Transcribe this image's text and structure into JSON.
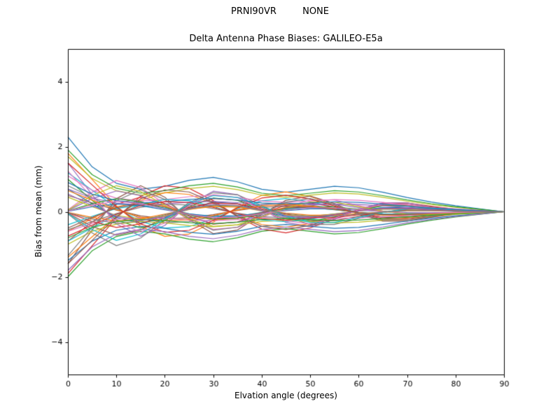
{
  "chart_data": {
    "type": "line",
    "suptitle": "PRNI90VR         NONE",
    "title": "Delta Antenna Phase Biases: GALILEO-E5a",
    "xlabel": "Elvation angle (degrees)",
    "ylabel": "Bias from mean (mm)",
    "xlim": [
      0,
      90
    ],
    "ylim": [
      -5,
      5
    ],
    "xticks": [
      0,
      10,
      20,
      30,
      40,
      50,
      60,
      70,
      80,
      90
    ],
    "yticks": [
      -4,
      -2,
      0,
      2,
      4
    ],
    "grid": false,
    "legend": "none",
    "line_width": 1.2,
    "x": [
      0,
      5,
      10,
      15,
      20,
      25,
      30,
      35,
      40,
      45,
      50,
      55,
      60,
      65,
      70,
      75,
      80,
      85,
      90
    ],
    "templates": [
      [
        1.0,
        0.6,
        0.38,
        0.3,
        0.34,
        0.42,
        0.46,
        0.4,
        0.3,
        0.26,
        0.3,
        0.34,
        0.32,
        0.26,
        0.19,
        0.13,
        0.08,
        0.04,
        0.0
      ],
      [
        1.0,
        0.55,
        0.1,
        -0.25,
        -0.42,
        -0.38,
        -0.18,
        0.08,
        0.28,
        0.34,
        0.26,
        0.12,
        -0.04,
        -0.14,
        -0.14,
        -0.09,
        -0.04,
        -0.01,
        0.0
      ],
      [
        1.0,
        0.35,
        -0.25,
        -0.5,
        -0.28,
        0.15,
        0.42,
        0.35,
        0.05,
        -0.22,
        -0.3,
        -0.16,
        0.05,
        0.18,
        0.18,
        0.1,
        0.04,
        0.01,
        0.0
      ],
      [
        0.05,
        0.5,
        0.8,
        0.62,
        0.2,
        -0.22,
        -0.45,
        -0.4,
        -0.15,
        0.12,
        0.3,
        0.3,
        0.16,
        0.02,
        -0.08,
        -0.09,
        -0.05,
        -0.02,
        0.0
      ]
    ],
    "series": [
      {
        "template": 0,
        "scale": 2.3,
        "color": "#1f77b4"
      },
      {
        "template": 1,
        "scale": 1.8,
        "color": "#ff7f0e"
      },
      {
        "template": 0,
        "scale": -2.0,
        "color": "#2ca02c"
      },
      {
        "template": 1,
        "scale": -1.9,
        "color": "#d62728"
      },
      {
        "template": 2,
        "scale": 1.5,
        "color": "#9467bd"
      },
      {
        "template": 2,
        "scale": -1.6,
        "color": "#8c564b"
      },
      {
        "template": 3,
        "scale": 1.2,
        "color": "#e377c2"
      },
      {
        "template": 3,
        "scale": -1.3,
        "color": "#7f7f7f"
      },
      {
        "template": 0,
        "scale": 1.7,
        "color": "#bcbd22"
      },
      {
        "template": 1,
        "scale": 1.2,
        "color": "#17becf"
      },
      {
        "template": 0,
        "scale": -1.5,
        "color": "#1f77b4"
      },
      {
        "template": 1,
        "scale": -1.4,
        "color": "#ff7f0e"
      },
      {
        "template": 2,
        "scale": 1.0,
        "color": "#2ca02c"
      },
      {
        "template": 2,
        "scale": -0.9,
        "color": "#d62728"
      },
      {
        "template": 3,
        "scale": 0.8,
        "color": "#9467bd"
      },
      {
        "template": 3,
        "scale": -0.9,
        "color": "#8c564b"
      },
      {
        "template": 0,
        "scale": 1.1,
        "color": "#e377c2"
      },
      {
        "template": 1,
        "scale": 0.8,
        "color": "#7f7f7f"
      },
      {
        "template": 0,
        "scale": -1.0,
        "color": "#bcbd22"
      },
      {
        "template": 1,
        "scale": -0.9,
        "color": "#17becf"
      },
      {
        "template": 2,
        "scale": 0.7,
        "color": "#1f77b4"
      },
      {
        "template": 2,
        "scale": -0.6,
        "color": "#ff7f0e"
      },
      {
        "template": 3,
        "scale": 0.5,
        "color": "#2ca02c"
      },
      {
        "template": 3,
        "scale": -0.6,
        "color": "#d62728"
      },
      {
        "template": 0,
        "scale": 0.7,
        "color": "#9467bd"
      },
      {
        "template": 1,
        "scale": 0.5,
        "color": "#8c564b"
      },
      {
        "template": 0,
        "scale": -0.6,
        "color": "#e377c2"
      },
      {
        "template": 1,
        "scale": -0.55,
        "color": "#7f7f7f"
      },
      {
        "template": 2,
        "scale": 0.45,
        "color": "#bcbd22"
      },
      {
        "template": 2,
        "scale": -0.4,
        "color": "#17becf"
      },
      {
        "template": 3,
        "scale": 0.3,
        "color": "#1f77b4"
      },
      {
        "template": 3,
        "scale": -0.35,
        "color": "#ff7f0e"
      },
      {
        "template": 0,
        "scale": 1.9,
        "color": "#2ca02c"
      },
      {
        "template": 1,
        "scale": 1.5,
        "color": "#d62728"
      },
      {
        "template": 0,
        "scale": -1.8,
        "color": "#9467bd"
      },
      {
        "template": 1,
        "scale": -1.6,
        "color": "#8c564b"
      },
      {
        "template": 2,
        "scale": 1.25,
        "color": "#e377c2"
      },
      {
        "template": 2,
        "scale": -1.35,
        "color": "#7f7f7f"
      },
      {
        "template": 3,
        "scale": 1.0,
        "color": "#bcbd22"
      },
      {
        "template": 3,
        "scale": -1.1,
        "color": "#17becf"
      },
      {
        "template": 0,
        "scale": 0.9,
        "color": "#1f77b4"
      },
      {
        "template": 1,
        "scale": 0.65,
        "color": "#ff7f0e"
      },
      {
        "template": 0,
        "scale": -0.8,
        "color": "#2ca02c"
      },
      {
        "template": 1,
        "scale": -0.75,
        "color": "#d62728"
      },
      {
        "template": 2,
        "scale": 0.55,
        "color": "#9467bd"
      },
      {
        "template": 2,
        "scale": -0.5,
        "color": "#8c564b"
      },
      {
        "template": 3,
        "scale": 0.4,
        "color": "#e377c2"
      },
      {
        "template": 3,
        "scale": -0.45,
        "color": "#7f7f7f"
      }
    ]
  }
}
